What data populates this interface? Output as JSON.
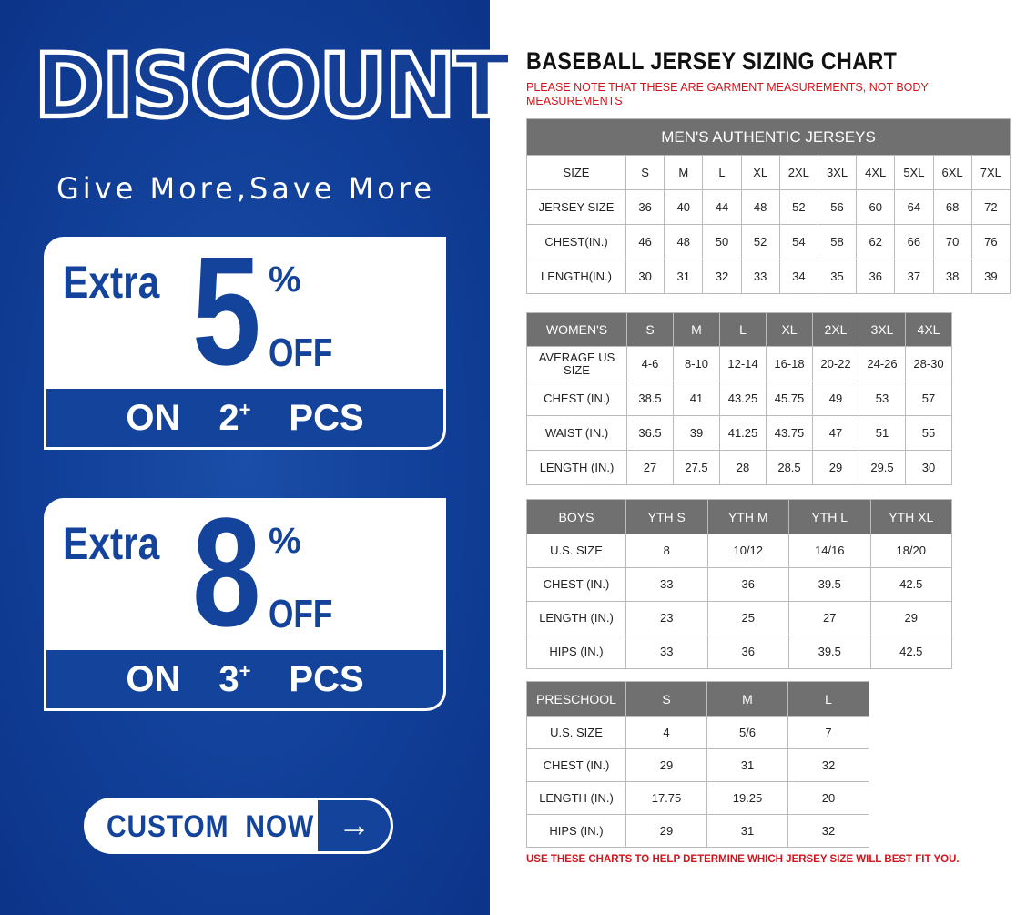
{
  "promo": {
    "headline": "DISCOUNT",
    "tagline": "Give More,Save More",
    "offers": [
      {
        "extra": "Extra",
        "percent": "5",
        "pct_sign": "%",
        "off": "OFF",
        "on": "ON",
        "qty": "2",
        "plus": "+",
        "pcs": "PCS"
      },
      {
        "extra": "Extra",
        "percent": "8",
        "pct_sign": "%",
        "off": "OFF",
        "on": "ON",
        "qty": "3",
        "plus": "+",
        "pcs": "PCS"
      }
    ],
    "button_label": "CUSTOM NOW",
    "button_icon": "arrow-right-icon",
    "arrow": "→",
    "color": "#13439a"
  },
  "chart": {
    "title": "BASEBALL JERSEY SIZING CHART",
    "note": "PLEASE NOTE THAT THESE ARE GARMENT MEASUREMENTS, NOT BODY MEASUREMENTS",
    "footer": "USE THESE CHARTS TO HELP DETERMINE WHICH JERSEY SIZE WILL BEST FIT YOU.",
    "accent": "#d4141c",
    "header_color": "#707070"
  },
  "chart_data": [
    {
      "type": "table",
      "title": "MEN'S AUTHENTIC JERSEYS",
      "rows": [
        [
          "SIZE",
          "S",
          "M",
          "L",
          "XL",
          "2XL",
          "3XL",
          "4XL",
          "5XL",
          "6XL",
          "7XL"
        ],
        [
          "JERSEY SIZE",
          "36",
          "40",
          "44",
          "48",
          "52",
          "56",
          "60",
          "64",
          "68",
          "72"
        ],
        [
          "CHEST(IN.)",
          "46",
          "48",
          "50",
          "52",
          "54",
          "58",
          "62",
          "66",
          "70",
          "76"
        ],
        [
          "LENGTH(IN.)",
          "30",
          "31",
          "32",
          "33",
          "34",
          "35",
          "36",
          "37",
          "38",
          "39"
        ]
      ]
    },
    {
      "type": "table",
      "header": [
        "WOMEN'S",
        "S",
        "M",
        "L",
        "XL",
        "2XL",
        "3XL",
        "4XL"
      ],
      "rows": [
        [
          "AVERAGE US SIZE",
          "4-6",
          "8-10",
          "12-14",
          "16-18",
          "20-22",
          "24-26",
          "28-30"
        ],
        [
          "CHEST (IN.)",
          "38.5",
          "41",
          "43.25",
          "45.75",
          "49",
          "53",
          "57"
        ],
        [
          "WAIST (IN.)",
          "36.5",
          "39",
          "41.25",
          "43.75",
          "47",
          "51",
          "55"
        ],
        [
          "LENGTH (IN.)",
          "27",
          "27.5",
          "28",
          "28.5",
          "29",
          "29.5",
          "30"
        ]
      ]
    },
    {
      "type": "table",
      "header": [
        "BOYS",
        "YTH S",
        "YTH M",
        "YTH L",
        "YTH XL"
      ],
      "rows": [
        [
          "U.S. SIZE",
          "8",
          "10/12",
          "14/16",
          "18/20"
        ],
        [
          "CHEST (IN.)",
          "33",
          "36",
          "39.5",
          "42.5"
        ],
        [
          "LENGTH (IN.)",
          "23",
          "25",
          "27",
          "29"
        ],
        [
          "HIPS (IN.)",
          "33",
          "36",
          "39.5",
          "42.5"
        ]
      ]
    },
    {
      "type": "table",
      "header": [
        "PRESCHOOL",
        "S",
        "M",
        "L"
      ],
      "rows": [
        [
          "U.S. SIZE",
          "4",
          "5/6",
          "7"
        ],
        [
          "CHEST (IN.)",
          "29",
          "31",
          "32"
        ],
        [
          "LENGTH (IN.)",
          "17.75",
          "19.25",
          "20"
        ],
        [
          "HIPS (IN.)",
          "29",
          "31",
          "32"
        ]
      ]
    }
  ]
}
